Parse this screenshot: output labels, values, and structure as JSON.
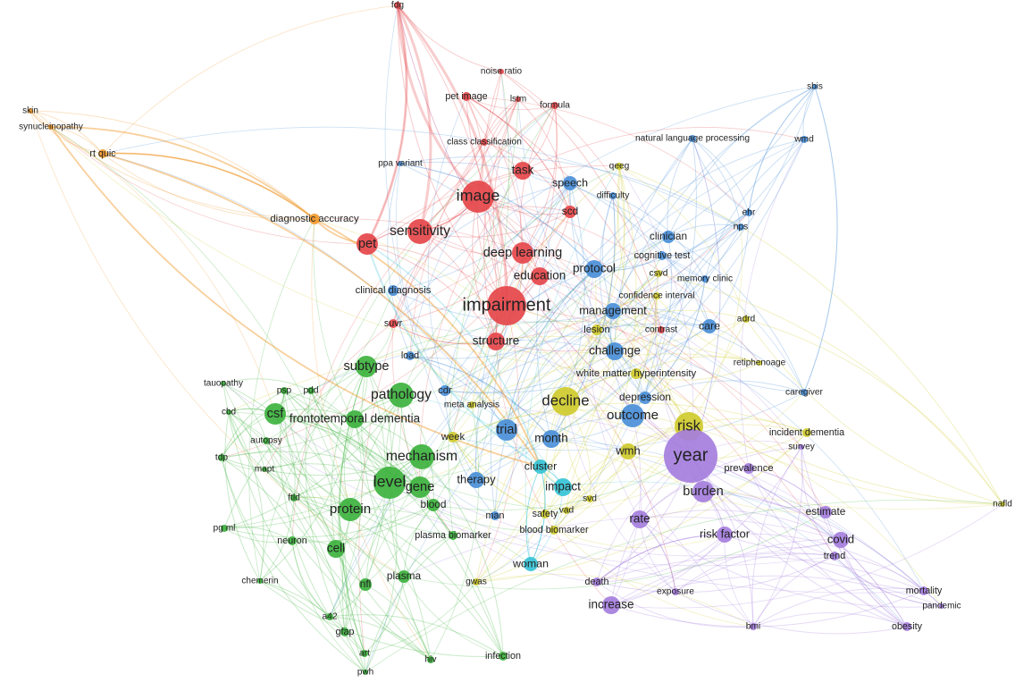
{
  "nodes": [
    {
      "label": "impairment"
    },
    {
      "label": "image"
    },
    {
      "label": "sensitivity"
    },
    {
      "label": "pet"
    },
    {
      "label": "deep learning"
    },
    {
      "label": "task"
    },
    {
      "label": "education"
    },
    {
      "label": "structure"
    },
    {
      "label": "scd"
    },
    {
      "label": "pet image"
    },
    {
      "label": "noise ratio"
    },
    {
      "label": "lstm"
    },
    {
      "label": "formula"
    },
    {
      "label": "fdg"
    },
    {
      "label": "class classification"
    },
    {
      "label": "suvr"
    },
    {
      "label": "contrast"
    },
    {
      "label": "speech"
    },
    {
      "label": "difficulty"
    },
    {
      "label": "protocol"
    },
    {
      "label": "clinician"
    },
    {
      "label": "cognitive test"
    },
    {
      "label": "memory clinic"
    },
    {
      "label": "natural language processing"
    },
    {
      "label": "wmd"
    },
    {
      "label": "sbis"
    },
    {
      "label": "ehr"
    },
    {
      "label": "nps"
    },
    {
      "label": "management"
    },
    {
      "label": "care"
    },
    {
      "label": "challenge"
    },
    {
      "label": "outcome"
    },
    {
      "label": "trial"
    },
    {
      "label": "month"
    },
    {
      "label": "therapy"
    },
    {
      "label": "cdr"
    },
    {
      "label": "ppa variant"
    },
    {
      "label": "caregiver"
    },
    {
      "label": "load"
    },
    {
      "label": "depression"
    },
    {
      "label": "man"
    },
    {
      "label": "clinical diagnosis"
    },
    {
      "label": "decline"
    },
    {
      "label": "risk"
    },
    {
      "label": "adrd"
    },
    {
      "label": "csvd"
    },
    {
      "label": "lesion"
    },
    {
      "label": "white matter hyperintensity"
    },
    {
      "label": "wmh"
    },
    {
      "label": "qeeg"
    },
    {
      "label": "retiphenoage"
    },
    {
      "label": "incident dementia"
    },
    {
      "label": "week"
    },
    {
      "label": "meta analysis"
    },
    {
      "label": "nafld"
    },
    {
      "label": "vad"
    },
    {
      "label": "gwas"
    },
    {
      "label": "safety"
    },
    {
      "label": "blood biomarker"
    },
    {
      "label": "svd"
    },
    {
      "label": "confidence interval"
    },
    {
      "label": "year"
    },
    {
      "label": "burden"
    },
    {
      "label": "prevalence"
    },
    {
      "label": "rate"
    },
    {
      "label": "risk factor"
    },
    {
      "label": "estimate"
    },
    {
      "label": "covid"
    },
    {
      "label": "trend"
    },
    {
      "label": "mortality"
    },
    {
      "label": "pandemic"
    },
    {
      "label": "obesity"
    },
    {
      "label": "bmi"
    },
    {
      "label": "death"
    },
    {
      "label": "exposure"
    },
    {
      "label": "increase"
    },
    {
      "label": "survey"
    },
    {
      "label": "level"
    },
    {
      "label": "gene"
    },
    {
      "label": "pathology"
    },
    {
      "label": "subtype"
    },
    {
      "label": "csf"
    },
    {
      "label": "mechanism"
    },
    {
      "label": "frontotemporal dementia"
    },
    {
      "label": "protein"
    },
    {
      "label": "cell"
    },
    {
      "label": "neuron"
    },
    {
      "label": "blood"
    },
    {
      "label": "plasma"
    },
    {
      "label": "plasma biomarker"
    },
    {
      "label": "nfl"
    },
    {
      "label": "psp"
    },
    {
      "label": "pdd"
    },
    {
      "label": "tauopathy"
    },
    {
      "label": "cbd"
    },
    {
      "label": "autopsy"
    },
    {
      "label": "tdp"
    },
    {
      "label": "mapt"
    },
    {
      "label": "ftld"
    },
    {
      "label": "pg ml"
    },
    {
      "label": "chemerin"
    },
    {
      "label": "a42"
    },
    {
      "label": "gfap"
    },
    {
      "label": "art"
    },
    {
      "label": "pwh"
    },
    {
      "label": "hiv"
    },
    {
      "label": "infection"
    },
    {
      "label": "skin"
    },
    {
      "label": "synucleinopathy"
    },
    {
      "label": "rt quic"
    },
    {
      "label": "diagnostic accuracy"
    },
    {
      "label": "cluster"
    },
    {
      "label": "impact"
    },
    {
      "label": "woman"
    }
  ]
}
